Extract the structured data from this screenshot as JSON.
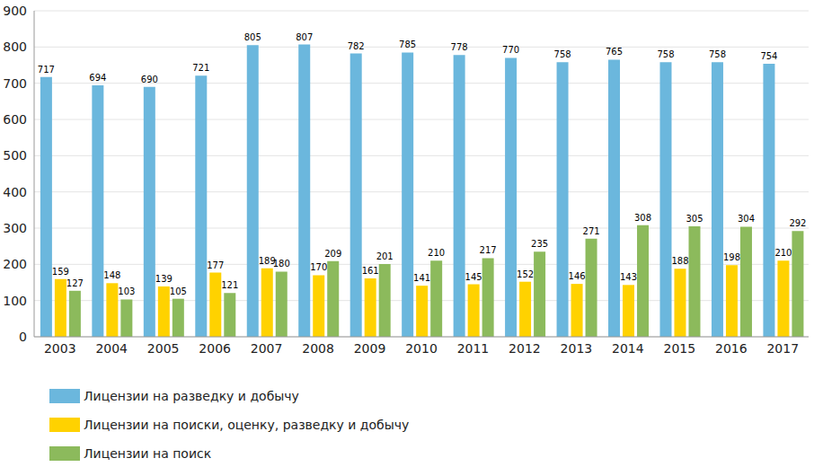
{
  "chart_data": {
    "type": "bar",
    "categories": [
      "2003",
      "2004",
      "2005",
      "2006",
      "2007",
      "2008",
      "2009",
      "2010",
      "2011",
      "2012",
      "2013",
      "2014",
      "2015",
      "2016",
      "2017"
    ],
    "series": [
      {
        "name": "Лицензии на разведку и добычу",
        "color": "#6bb7dd",
        "values": [
          717,
          694,
          690,
          721,
          805,
          807,
          782,
          785,
          778,
          770,
          758,
          765,
          758,
          758,
          754
        ]
      },
      {
        "name": "Лицензии на поиски, оценку, разведку и добычу",
        "color": "#ffd200",
        "values": [
          159,
          148,
          139,
          177,
          189,
          170,
          161,
          141,
          145,
          152,
          146,
          143,
          188,
          198,
          210
        ]
      },
      {
        "name": "Лицензии на поиск",
        "color": "#8cba5c",
        "values": [
          127,
          103,
          105,
          121,
          180,
          209,
          201,
          210,
          217,
          235,
          271,
          308,
          305,
          304,
          292
        ]
      }
    ],
    "ylim": [
      0,
      900
    ],
    "yticks": [
      0,
      100,
      200,
      300,
      400,
      500,
      600,
      700,
      800,
      900
    ],
    "grid": true,
    "data_labels": true,
    "legend": "bottom"
  }
}
